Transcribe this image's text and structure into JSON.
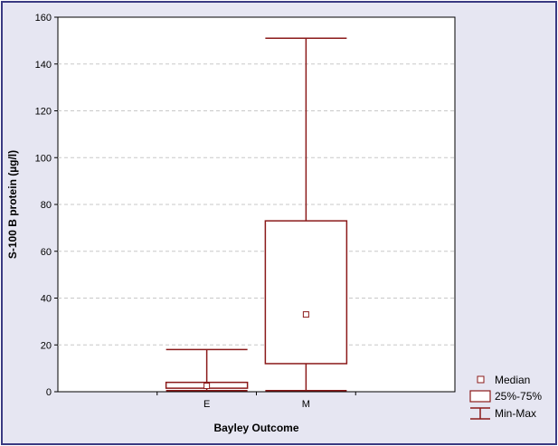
{
  "chart_data": {
    "type": "boxplot",
    "title": "",
    "xlabel": "Bayley Outcome",
    "ylabel": "S-100 B protein (µg/l)",
    "ylim": [
      0,
      160
    ],
    "yticks": [
      0,
      20,
      40,
      60,
      80,
      100,
      120,
      140,
      160
    ],
    "grid": true,
    "legend_position": "bottom-right",
    "categories": [
      "E",
      "M"
    ],
    "series": [
      {
        "category": "E",
        "min": 0.5,
        "q1": 1.5,
        "median": 2.5,
        "q3": 4.0,
        "max": 18.0
      },
      {
        "category": "M",
        "min": 0.5,
        "q1": 12.0,
        "median": 33.0,
        "q3": 73.0,
        "max": 151.0
      }
    ],
    "legend": [
      "Median",
      "25%-75%",
      "Min-Max"
    ],
    "colors": {
      "box": "#8b1a1a",
      "grid": "#c8c8c8",
      "frame": "#3a3a82",
      "background": "#e6e6f2"
    }
  }
}
